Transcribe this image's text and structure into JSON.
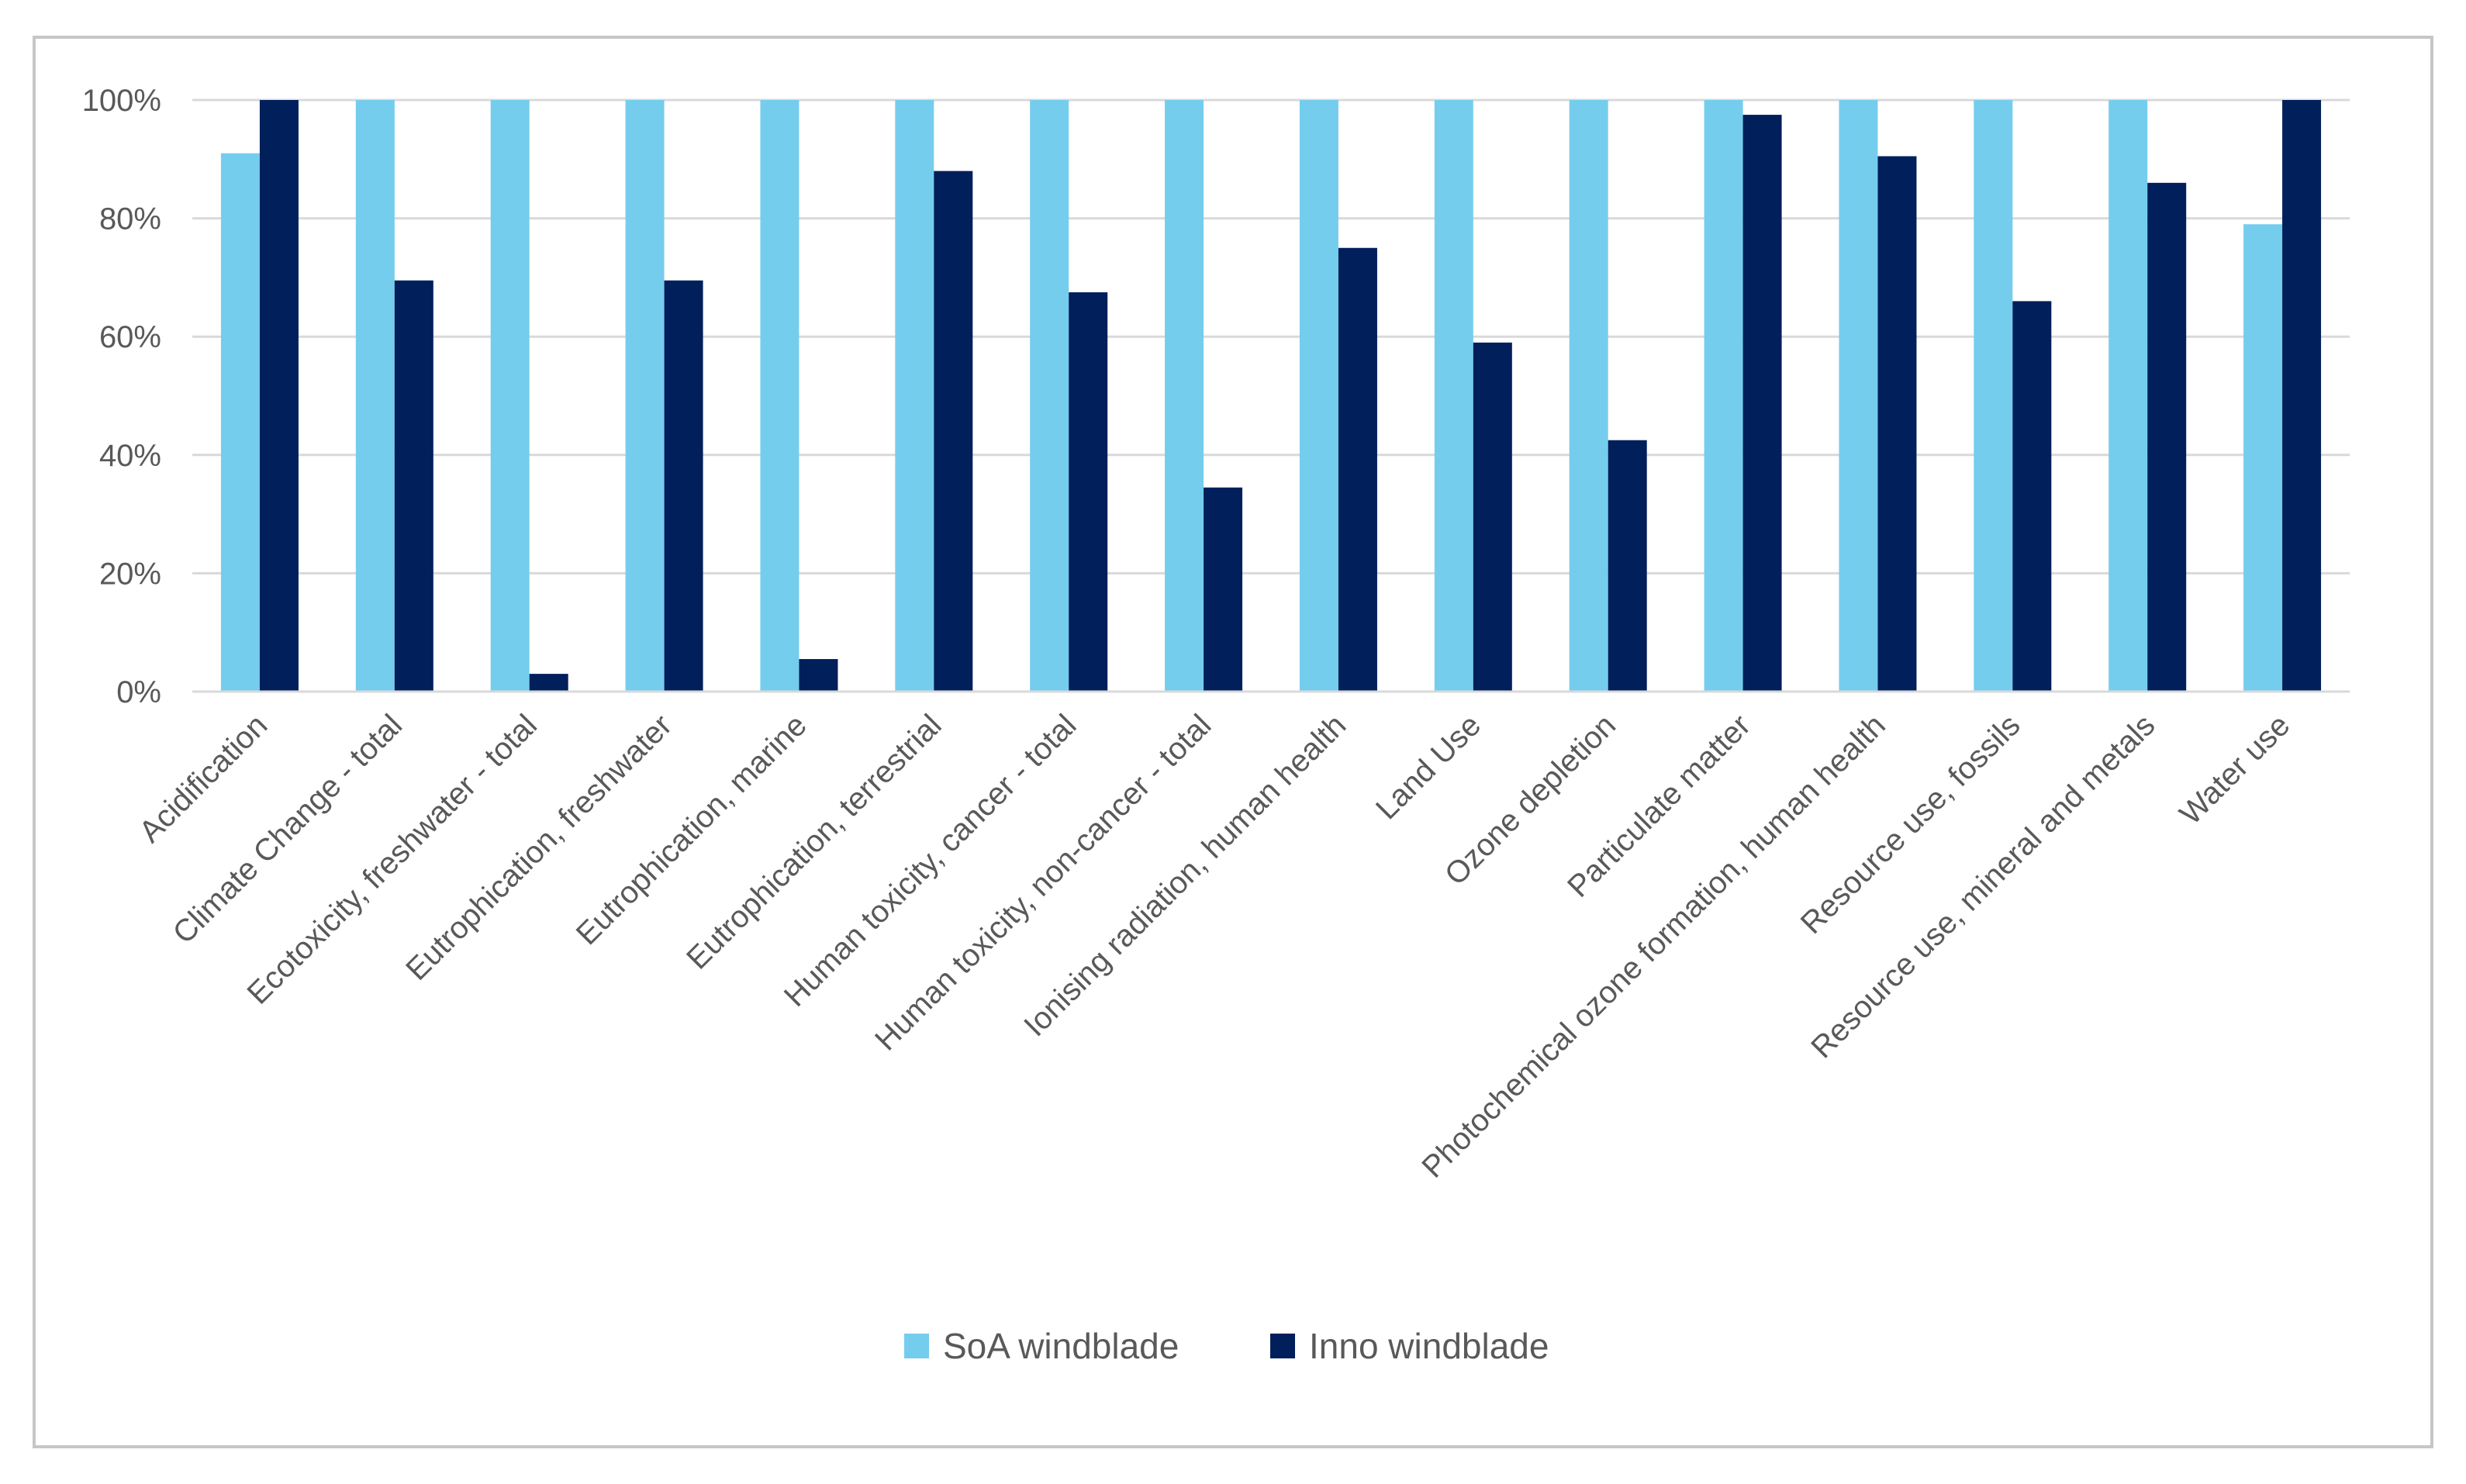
{
  "chart_data": {
    "type": "bar",
    "title": "",
    "xlabel": "",
    "ylabel": "",
    "ylim": [
      0,
      100
    ],
    "yticks": [
      "0%",
      "20%",
      "40%",
      "60%",
      "80%",
      "100%"
    ],
    "grid": true,
    "legend_position": "bottom",
    "categories": [
      "Acidification",
      "Climate Change - total",
      "Ecotoxicity, freshwater - total",
      "Eutrophication, freshwater",
      "Eutrophication, marine",
      "Eutrophication, terrestrial",
      "Human toxicity, cancer - total",
      "Human toxicity, non-cancer - total",
      "Ionising radiation, human health",
      "Land Use",
      "Ozone depletion",
      "Particulate matter",
      "Photochemical ozone formation, human health",
      "Resource use, fossils",
      "Resource use, mineral and metals",
      "Water use"
    ],
    "series": [
      {
        "name": "SoA windblade",
        "color": "#75cdee",
        "values": [
          91,
          100,
          100,
          100,
          100,
          100,
          100,
          100,
          100,
          100,
          100,
          100,
          100,
          100,
          100,
          79
        ]
      },
      {
        "name": "Inno windblade",
        "color": "#001f5b",
        "values": [
          100,
          69.5,
          3,
          69.5,
          5.5,
          88,
          67.5,
          34.5,
          75,
          59,
          42.5,
          97.5,
          90.5,
          66,
          86,
          100
        ]
      }
    ]
  }
}
